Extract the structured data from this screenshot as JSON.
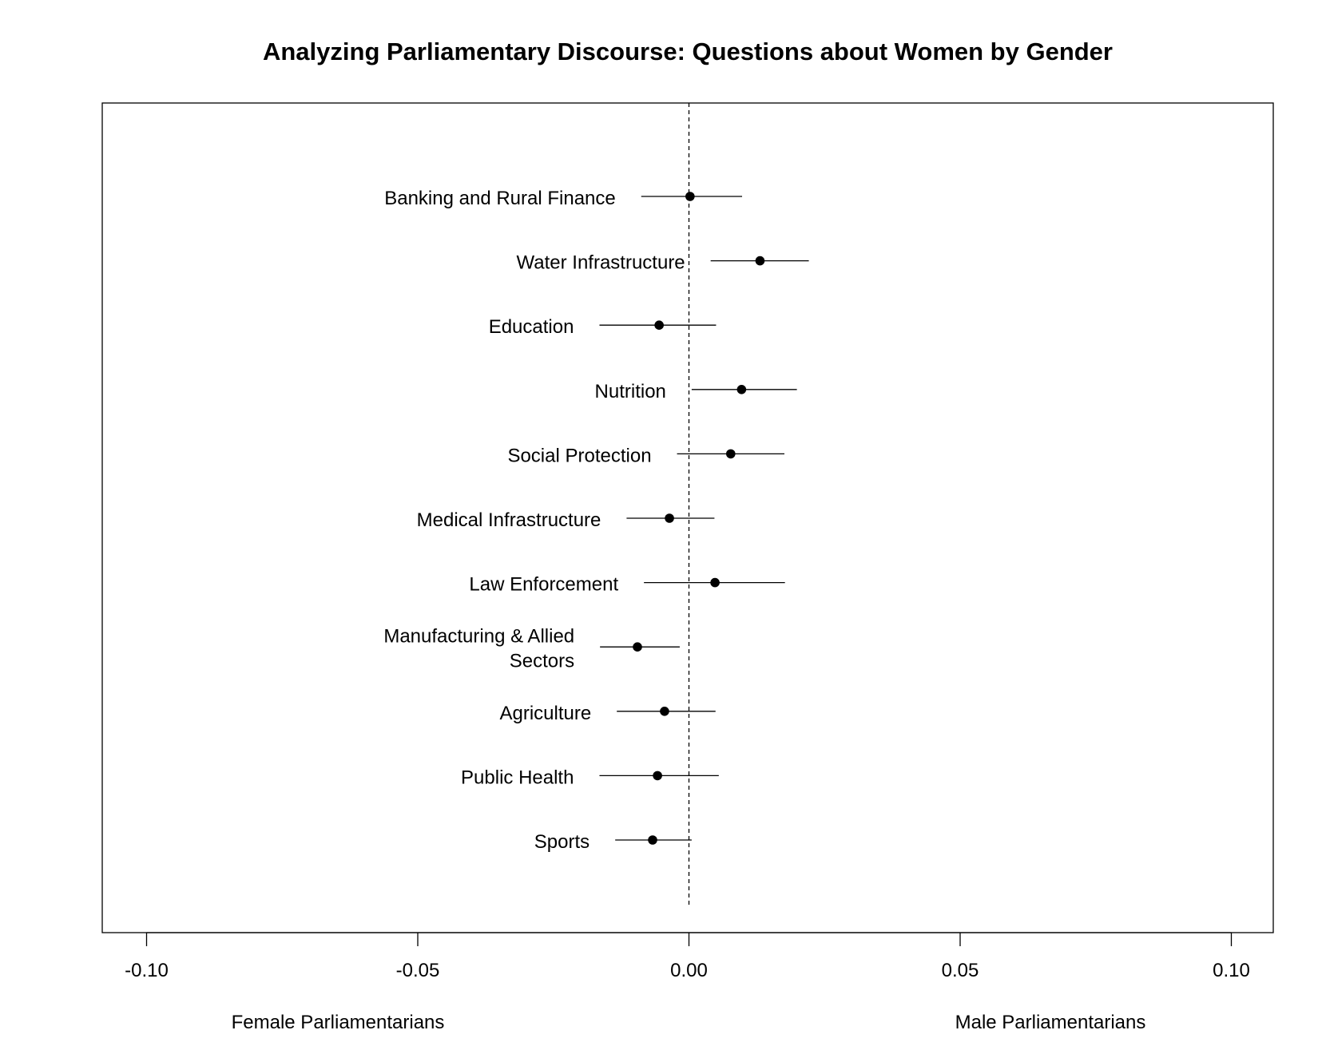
{
  "chart_data": {
    "type": "scatter",
    "subtype": "coefficient-plot",
    "title": "Analyzing Parliamentary Discourse: Questions about Women by Gender",
    "xlim": [
      -0.108,
      0.108
    ],
    "xticks": [
      -0.1,
      -0.05,
      0.0,
      0.05,
      0.1
    ],
    "tick_labels": [
      "-0.10",
      "-0.05",
      "0.00",
      "0.05",
      "0.10"
    ],
    "reference_line": 0,
    "reference_line_style": "dashed",
    "left_label": "Female Parliamentarians",
    "right_label": "Male Parliamentarians",
    "grid": false,
    "legend": "none",
    "categories": [
      {
        "label": [
          "Banking and Rural Finance"
        ],
        "estimate": 0.0002,
        "low": -0.0088,
        "high": 0.0098
      },
      {
        "label": [
          "Water Infrastructure"
        ],
        "estimate": 0.0131,
        "low": 0.004,
        "high": 0.0221
      },
      {
        "label": [
          "Education"
        ],
        "estimate": -0.0055,
        "low": -0.0165,
        "high": 0.005
      },
      {
        "label": [
          "Nutrition"
        ],
        "estimate": 0.0097,
        "low": 0.0005,
        "high": 0.0199
      },
      {
        "label": [
          "Social Protection"
        ],
        "estimate": 0.0077,
        "low": -0.0022,
        "high": 0.0176
      },
      {
        "label": [
          "Medical Infrastructure"
        ],
        "estimate": -0.0036,
        "low": -0.0115,
        "high": 0.0047
      },
      {
        "label": [
          "Law Enforcement"
        ],
        "estimate": 0.0048,
        "low": -0.0083,
        "high": 0.0177
      },
      {
        "label": [
          "Manufacturing & Allied",
          "Sectors"
        ],
        "estimate": -0.0095,
        "low": -0.0164,
        "high": -0.0017
      },
      {
        "label": [
          "Agriculture"
        ],
        "estimate": -0.0045,
        "low": -0.0133,
        "high": 0.0049
      },
      {
        "label": [
          "Public Health"
        ],
        "estimate": -0.0058,
        "low": -0.0165,
        "high": 0.0055
      },
      {
        "label": [
          "Sports"
        ],
        "estimate": -0.0067,
        "low": -0.0136,
        "high": 0.0005
      }
    ]
  }
}
